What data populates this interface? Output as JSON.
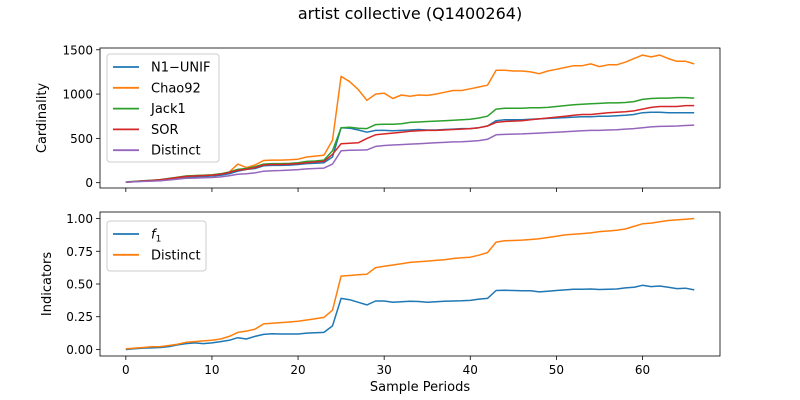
{
  "figure_title": "artist collective (Q1400264)",
  "colors": {
    "blue": "#1f77b4",
    "orange": "#ff7f0e",
    "green": "#2ca02c",
    "red": "#d62728",
    "purple": "#9467bd"
  },
  "chart_data": [
    {
      "type": "line",
      "title": "",
      "xlabel": "",
      "ylabel": "Cardinality",
      "xlim": [
        -3,
        69
      ],
      "ylim": [
        -60,
        1520
      ],
      "xticks": [
        0,
        10,
        20,
        30,
        40,
        50,
        60
      ],
      "xtick_labels_visible": false,
      "yticks": [
        0,
        500,
        1000,
        1500
      ],
      "ytick_labels": [
        "0",
        "500",
        "1000",
        "1500"
      ],
      "grid": false,
      "legend_position": "upper-left",
      "x": [
        0,
        1,
        2,
        3,
        4,
        5,
        6,
        7,
        8,
        9,
        10,
        11,
        12,
        13,
        14,
        15,
        16,
        17,
        18,
        19,
        20,
        21,
        22,
        23,
        24,
        25,
        26,
        27,
        28,
        29,
        30,
        31,
        32,
        33,
        34,
        35,
        36,
        37,
        38,
        39,
        40,
        41,
        42,
        43,
        44,
        45,
        46,
        47,
        48,
        49,
        50,
        51,
        52,
        53,
        54,
        55,
        56,
        57,
        58,
        59,
        60,
        61,
        62,
        63,
        64,
        65,
        66
      ],
      "series": [
        {
          "name": "N1−UNIF",
          "color": "blue",
          "values": [
            5,
            10,
            18,
            20,
            25,
            35,
            50,
            62,
            65,
            70,
            75,
            85,
            100,
            130,
            150,
            160,
            190,
            195,
            195,
            198,
            205,
            215,
            220,
            225,
            290,
            620,
            615,
            595,
            570,
            590,
            590,
            585,
            590,
            595,
            600,
            595,
            595,
            600,
            605,
            610,
            610,
            620,
            640,
            700,
            710,
            710,
            710,
            715,
            720,
            725,
            730,
            735,
            740,
            745,
            745,
            750,
            750,
            755,
            760,
            770,
            790,
            795,
            795,
            790,
            790,
            790,
            790
          ]
        },
        {
          "name": "Chao92",
          "color": "orange",
          "values": [
            5,
            12,
            20,
            25,
            32,
            45,
            60,
            75,
            80,
            85,
            88,
            100,
            120,
            210,
            170,
            200,
            250,
            255,
            255,
            258,
            265,
            290,
            300,
            310,
            480,
            1200,
            1140,
            1050,
            930,
            1000,
            1010,
            950,
            990,
            975,
            990,
            985,
            1000,
            1020,
            1040,
            1040,
            1060,
            1080,
            1100,
            1270,
            1270,
            1260,
            1260,
            1250,
            1230,
            1260,
            1280,
            1300,
            1320,
            1320,
            1340,
            1310,
            1330,
            1330,
            1360,
            1400,
            1440,
            1420,
            1440,
            1400,
            1370,
            1370,
            1340
          ]
        },
        {
          "name": "Jack1",
          "color": "green",
          "values": [
            8,
            15,
            22,
            28,
            35,
            48,
            62,
            75,
            80,
            84,
            88,
            100,
            120,
            150,
            160,
            180,
            210,
            215,
            215,
            218,
            225,
            240,
            245,
            255,
            360,
            620,
            625,
            615,
            610,
            655,
            660,
            660,
            665,
            680,
            685,
            690,
            695,
            700,
            705,
            710,
            715,
            730,
            750,
            830,
            840,
            840,
            840,
            845,
            845,
            850,
            860,
            870,
            880,
            885,
            890,
            895,
            900,
            900,
            905,
            915,
            940,
            950,
            955,
            955,
            960,
            960,
            955
          ]
        },
        {
          "name": "SOR",
          "color": "red",
          "values": [
            5,
            12,
            20,
            25,
            32,
            45,
            58,
            70,
            75,
            80,
            85,
            95,
            115,
            140,
            150,
            170,
            200,
            205,
            205,
            210,
            215,
            225,
            235,
            240,
            320,
            440,
            445,
            450,
            500,
            540,
            550,
            560,
            570,
            580,
            585,
            590,
            590,
            595,
            600,
            605,
            610,
            620,
            640,
            680,
            690,
            695,
            700,
            710,
            720,
            730,
            740,
            750,
            760,
            770,
            770,
            780,
            790,
            795,
            800,
            810,
            830,
            850,
            860,
            860,
            860,
            870,
            870
          ]
        },
        {
          "name": "Distinct",
          "color": "purple",
          "values": [
            5,
            10,
            15,
            18,
            22,
            30,
            40,
            50,
            52,
            55,
            58,
            65,
            78,
            95,
            100,
            110,
            130,
            135,
            138,
            142,
            148,
            155,
            160,
            165,
            210,
            360,
            365,
            368,
            370,
            410,
            420,
            425,
            430,
            435,
            440,
            445,
            450,
            455,
            460,
            462,
            468,
            475,
            490,
            540,
            545,
            548,
            550,
            555,
            560,
            565,
            570,
            575,
            580,
            585,
            590,
            590,
            595,
            598,
            605,
            610,
            620,
            630,
            635,
            638,
            640,
            645,
            650
          ]
        }
      ]
    },
    {
      "type": "line",
      "title": "",
      "xlabel": "Sample Periods",
      "ylabel": "Indicators",
      "xlim": [
        -3,
        69
      ],
      "ylim": [
        -0.05,
        1.05
      ],
      "xticks": [
        0,
        10,
        20,
        30,
        40,
        50,
        60
      ],
      "xtick_labels": [
        "0",
        "10",
        "20",
        "30",
        "40",
        "50",
        "60"
      ],
      "yticks": [
        0.0,
        0.25,
        0.5,
        0.75,
        1.0
      ],
      "ytick_labels": [
        "0.00",
        "0.25",
        "0.50",
        "0.75",
        "1.00"
      ],
      "grid": false,
      "legend_position": "upper-left",
      "x": [
        0,
        1,
        2,
        3,
        4,
        5,
        6,
        7,
        8,
        9,
        10,
        11,
        12,
        13,
        14,
        15,
        16,
        17,
        18,
        19,
        20,
        21,
        22,
        23,
        24,
        25,
        26,
        27,
        28,
        29,
        30,
        31,
        32,
        33,
        34,
        35,
        36,
        37,
        38,
        39,
        40,
        41,
        42,
        43,
        44,
        45,
        46,
        47,
        48,
        49,
        50,
        51,
        52,
        53,
        54,
        55,
        56,
        57,
        58,
        59,
        60,
        61,
        62,
        63,
        64,
        65,
        66
      ],
      "series": [
        {
          "name": "f1",
          "label_base": "f",
          "label_sub": "1",
          "color": "blue",
          "values": [
            0.0,
            0.005,
            0.01,
            0.012,
            0.015,
            0.022,
            0.035,
            0.045,
            0.05,
            0.045,
            0.05,
            0.06,
            0.07,
            0.09,
            0.08,
            0.1,
            0.115,
            0.12,
            0.118,
            0.118,
            0.118,
            0.125,
            0.128,
            0.13,
            0.18,
            0.39,
            0.38,
            0.36,
            0.34,
            0.37,
            0.37,
            0.36,
            0.365,
            0.368,
            0.366,
            0.36,
            0.365,
            0.368,
            0.37,
            0.372,
            0.375,
            0.385,
            0.39,
            0.45,
            0.452,
            0.45,
            0.448,
            0.448,
            0.44,
            0.445,
            0.45,
            0.455,
            0.46,
            0.46,
            0.462,
            0.458,
            0.46,
            0.462,
            0.47,
            0.475,
            0.49,
            0.48,
            0.485,
            0.475,
            0.465,
            0.468,
            0.455
          ]
        },
        {
          "name": "Distinct",
          "color": "orange",
          "values": [
            0.005,
            0.01,
            0.015,
            0.02,
            0.022,
            0.03,
            0.04,
            0.055,
            0.06,
            0.065,
            0.07,
            0.08,
            0.1,
            0.13,
            0.14,
            0.155,
            0.195,
            0.2,
            0.205,
            0.21,
            0.215,
            0.225,
            0.235,
            0.245,
            0.3,
            0.56,
            0.565,
            0.57,
            0.575,
            0.625,
            0.635,
            0.645,
            0.655,
            0.665,
            0.67,
            0.675,
            0.68,
            0.685,
            0.695,
            0.7,
            0.705,
            0.72,
            0.74,
            0.82,
            0.83,
            0.832,
            0.835,
            0.84,
            0.845,
            0.855,
            0.865,
            0.875,
            0.88,
            0.885,
            0.89,
            0.9,
            0.905,
            0.91,
            0.92,
            0.94,
            0.96,
            0.965,
            0.975,
            0.985,
            0.99,
            0.995,
            1.0
          ]
        }
      ]
    }
  ]
}
